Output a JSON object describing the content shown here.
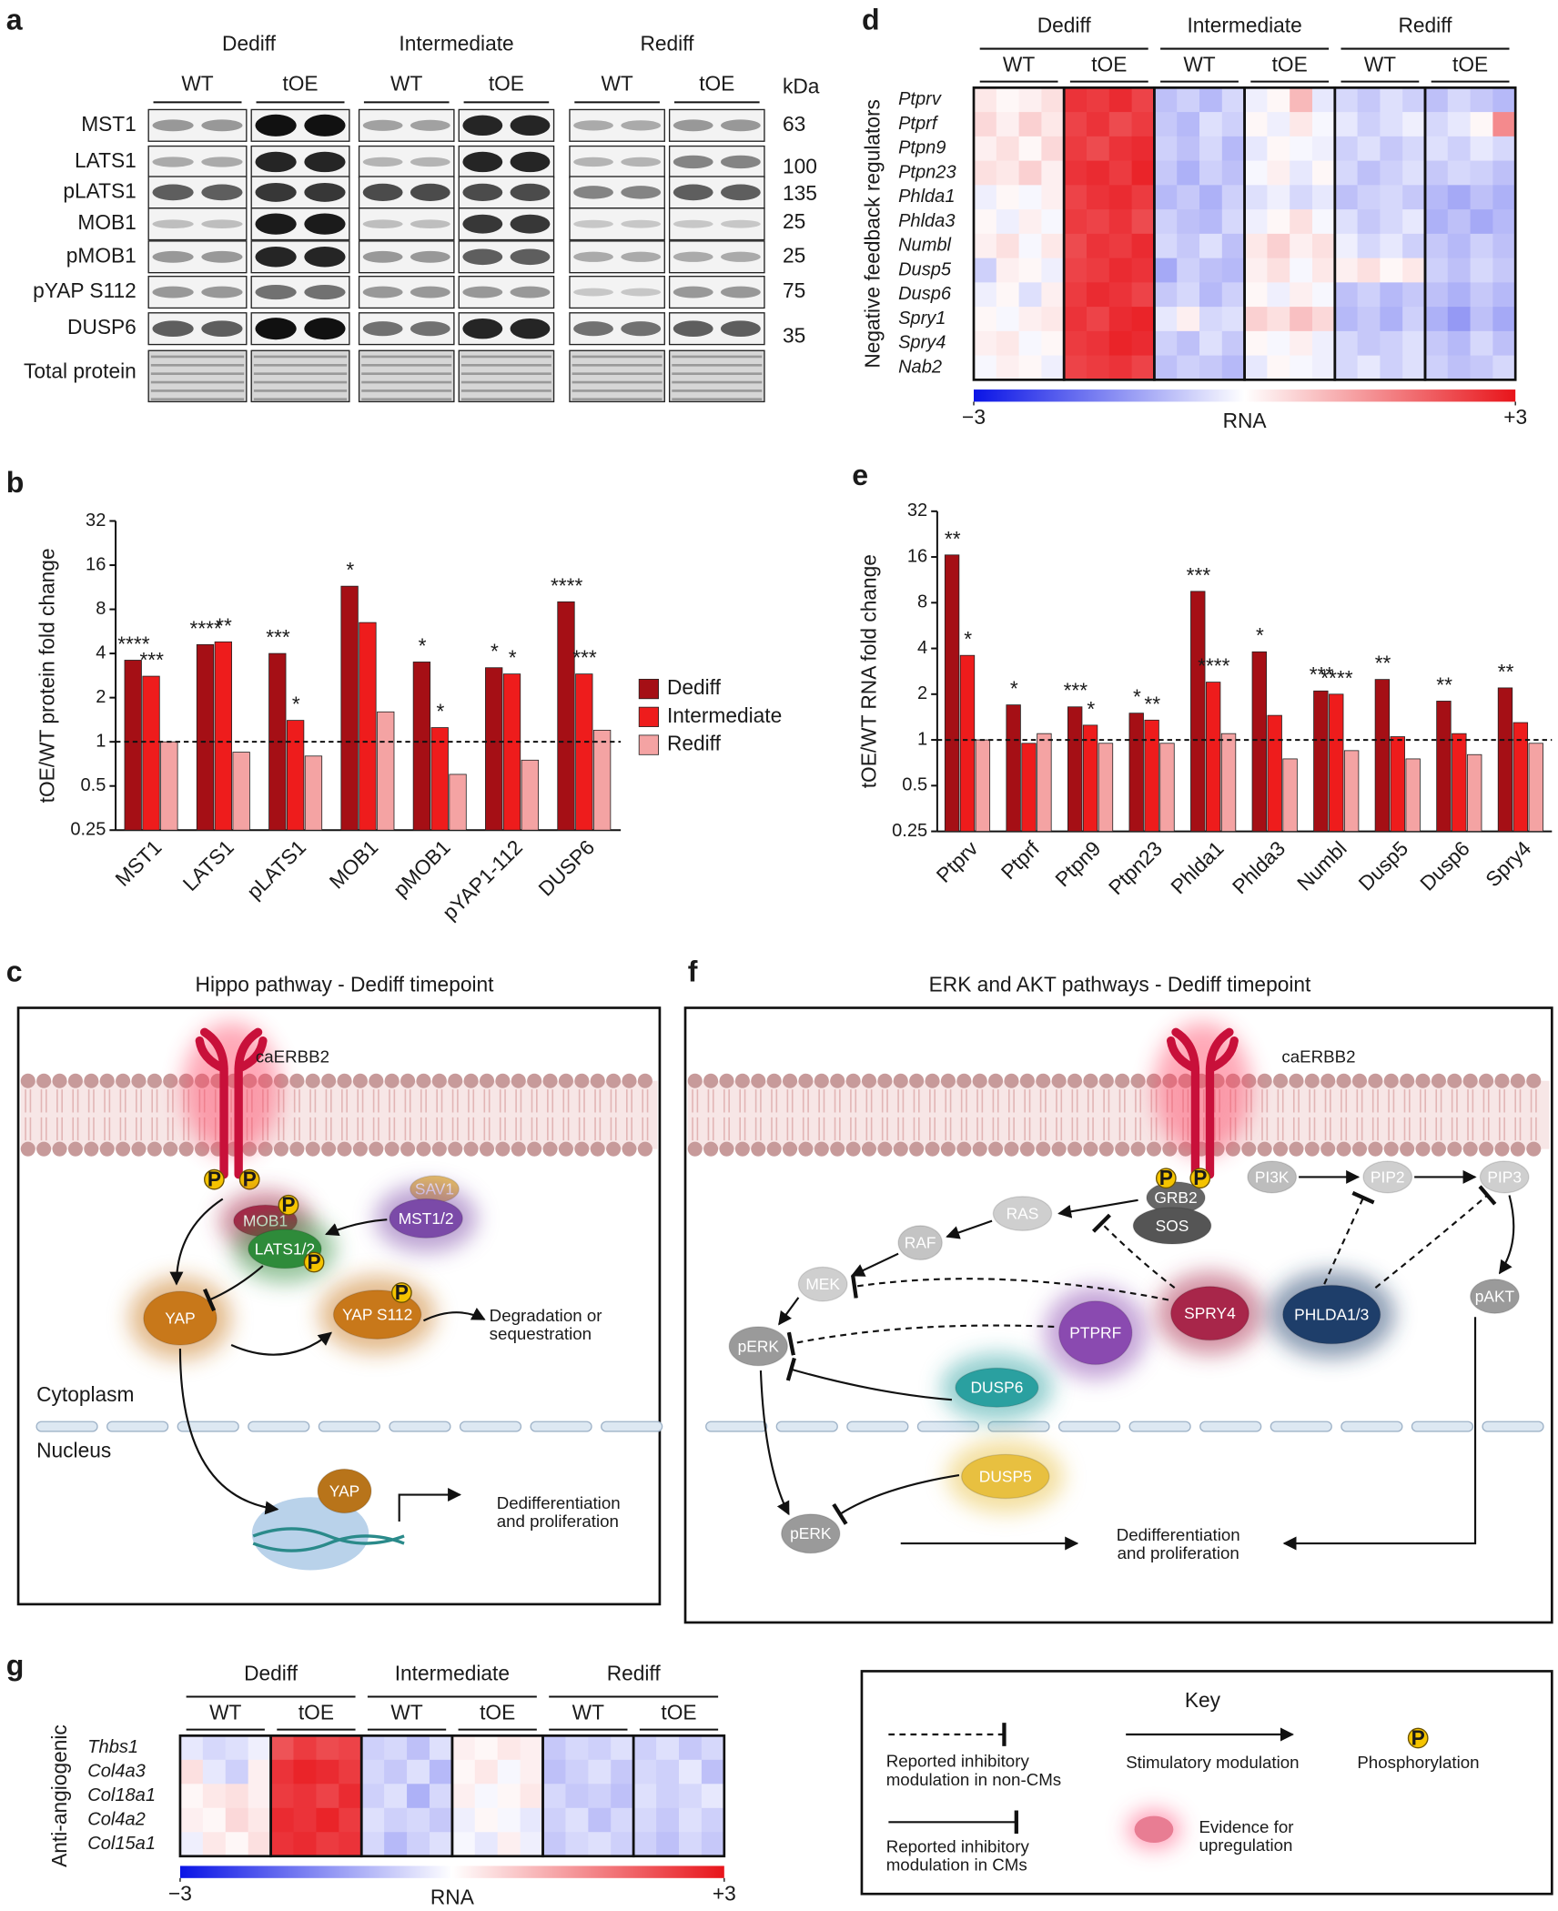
{
  "chart_data": [
    {
      "type": "bar",
      "panel": "b",
      "ylabel": "tOE/WT protein fold change",
      "log_scale": true,
      "hline": 1,
      "legend": true,
      "categories": [
        "MST1",
        "LATS1",
        "pLATS1",
        "MOB1",
        "pMOB1",
        "pYAP1-112",
        "DUSP6"
      ],
      "ylim": [
        0.25,
        32
      ],
      "yticks": [
        0.25,
        0.5,
        1,
        2,
        4,
        8,
        16,
        32
      ],
      "series": [
        {
          "name": "Dediff",
          "color": "#a50f15",
          "values": [
            3.6,
            4.6,
            4.0,
            11.5,
            3.5,
            3.2,
            9.0
          ],
          "annotations": [
            "****",
            "****",
            "***",
            "*",
            "*",
            "*",
            "****"
          ]
        },
        {
          "name": "Intermediate",
          "color": "#ee1c1c",
          "values": [
            2.8,
            4.8,
            1.4,
            6.5,
            1.25,
            2.9,
            2.9
          ],
          "annotations": [
            "***",
            "**",
            "*",
            null,
            "*",
            "*",
            "***"
          ]
        },
        {
          "name": "Rediff",
          "color": "#f4a3a3",
          "values": [
            1.0,
            0.85,
            0.8,
            1.6,
            0.6,
            0.75,
            1.2
          ]
        }
      ]
    },
    {
      "type": "heatmap",
      "panel": "d",
      "ylabel": "Negative feedback regulators",
      "groups": [
        "Dediff",
        "Intermediate",
        "Rediff"
      ],
      "subgroups": [
        "WT",
        "tOE",
        "WT",
        "tOE",
        "WT",
        "tOE"
      ],
      "rows": [
        "Ptprv",
        "Ptprf",
        "Ptpn9",
        "Ptpn23",
        "Phlda1",
        "Phlda3",
        "Numbl",
        "Dusp5",
        "Dusp6",
        "Spry1",
        "Spry4",
        "Nab2"
      ],
      "values": [
        [
          0.3,
          0.1,
          0.2,
          0.4,
          2.6,
          2.5,
          2.7,
          2.4,
          -0.8,
          -0.6,
          -0.9,
          -0.5,
          -0.2,
          0.1,
          0.9,
          -0.3,
          -0.5,
          -0.7,
          -0.4,
          -0.6,
          -0.8,
          -0.5,
          -0.7,
          -0.9
        ],
        [
          0.5,
          0.2,
          0.6,
          0.3,
          2.4,
          2.6,
          2.3,
          2.5,
          -0.7,
          -0.9,
          -0.4,
          -0.6,
          0.1,
          -0.2,
          0.3,
          -0.1,
          -0.3,
          -0.6,
          -0.4,
          -0.2,
          -0.5,
          -0.3,
          0.1,
          1.5
        ],
        [
          0.2,
          0.4,
          0.1,
          0.5,
          2.5,
          2.3,
          2.6,
          2.7,
          -0.6,
          -0.8,
          -0.5,
          -0.9,
          -0.3,
          0.1,
          -0.1,
          -0.2,
          -0.6,
          -0.4,
          -0.7,
          -0.5,
          -0.4,
          -0.6,
          -0.3,
          -0.5
        ],
        [
          0.4,
          0.3,
          0.6,
          0.2,
          2.6,
          2.7,
          2.5,
          2.8,
          -0.7,
          -1.0,
          -0.6,
          -0.8,
          -0.1,
          0.2,
          -0.3,
          0.1,
          -0.5,
          -0.8,
          -0.6,
          -0.4,
          -0.7,
          -0.5,
          -0.6,
          -0.8
        ],
        [
          -0.2,
          0.1,
          -0.1,
          0.2,
          2.4,
          2.6,
          2.7,
          2.5,
          -0.9,
          -0.7,
          -1.0,
          -0.6,
          -0.4,
          -0.2,
          -0.5,
          -0.3,
          -0.8,
          -0.6,
          -0.5,
          -0.7,
          -0.9,
          -1.1,
          -0.8,
          -1.0
        ],
        [
          0.1,
          -0.2,
          0.2,
          -0.1,
          2.5,
          2.4,
          2.6,
          2.3,
          -0.6,
          -0.8,
          -0.9,
          -0.5,
          -0.2,
          0.1,
          0.4,
          -0.1,
          -0.4,
          -0.7,
          -0.5,
          -0.3,
          -1.0,
          -0.8,
          -1.1,
          -0.9
        ],
        [
          0.2,
          0.4,
          -0.1,
          0.3,
          2.3,
          2.6,
          2.5,
          2.7,
          -0.5,
          -0.7,
          -0.4,
          -0.8,
          0.3,
          0.6,
          0.2,
          0.4,
          -0.2,
          -0.5,
          -0.3,
          -0.6,
          -0.7,
          -0.9,
          -0.6,
          -0.8
        ],
        [
          -0.6,
          0.2,
          0.1,
          -0.2,
          2.4,
          2.5,
          2.7,
          2.6,
          -1.1,
          -0.6,
          -0.8,
          -0.9,
          0.2,
          0.4,
          -0.1,
          0.3,
          0.2,
          0.4,
          0.1,
          0.3,
          -0.6,
          -0.8,
          -0.5,
          -0.7
        ],
        [
          -0.2,
          0.1,
          -0.4,
          0.2,
          2.5,
          2.7,
          2.6,
          2.4,
          -0.7,
          -0.5,
          -0.9,
          -0.6,
          0.1,
          -0.2,
          0.2,
          -0.1,
          -0.8,
          -0.6,
          -0.9,
          -0.7,
          -0.8,
          -1.0,
          -0.7,
          -0.9
        ],
        [
          0.1,
          -0.1,
          0.2,
          0.3,
          2.6,
          2.4,
          2.7,
          2.8,
          -0.3,
          0.2,
          -0.5,
          -0.4,
          0.6,
          0.4,
          0.8,
          0.5,
          -0.9,
          -0.7,
          -1.0,
          -0.6,
          -1.0,
          -1.3,
          -0.8,
          -1.1
        ],
        [
          0.2,
          0.3,
          -0.1,
          0.1,
          2.5,
          2.6,
          2.8,
          2.7,
          -0.6,
          -0.8,
          -0.4,
          -0.7,
          0.1,
          -0.1,
          0.2,
          -0.2,
          -0.5,
          -0.7,
          -0.6,
          -0.4,
          -0.7,
          -0.9,
          -0.5,
          -0.8
        ],
        [
          -0.1,
          0.2,
          0.1,
          -0.2,
          2.4,
          2.5,
          2.6,
          2.4,
          -0.8,
          -0.6,
          -0.7,
          -0.9,
          -0.3,
          0.1,
          -0.1,
          -0.2,
          -0.5,
          -0.3,
          -0.6,
          -0.4,
          -0.6,
          -0.8,
          -0.7,
          -0.5
        ]
      ],
      "zlim": [
        -3,
        3
      ],
      "zticks": [
        {
          "value": -3,
          "label": "−3"
        },
        {
          "value": 3,
          "label": "+3"
        }
      ],
      "colorbar_label": "RNA",
      "colors": [
        "#0a14e6",
        "#ffffff",
        "#e8141a"
      ]
    },
    {
      "type": "bar",
      "panel": "e",
      "ylabel": "tOE/WT RNA fold change",
      "log_scale": true,
      "hline": 1,
      "legend": false,
      "categories": [
        "Ptprv",
        "Ptprf",
        "Ptpn9",
        "Ptpn23",
        "Phlda1",
        "Phlda3",
        "Numbl",
        "Dusp5",
        "Dusp6",
        "Spry4"
      ],
      "ylim": [
        0.25,
        32
      ],
      "yticks": [
        0.25,
        0.5,
        1,
        2,
        4,
        8,
        16,
        32
      ],
      "series": [
        {
          "name": "Dediff",
          "color": "#a50f15",
          "values": [
            16.5,
            1.7,
            1.65,
            1.5,
            9.5,
            3.8,
            2.1,
            2.5,
            1.8,
            2.2
          ],
          "annotations": [
            "**",
            "*",
            "***",
            "*",
            "***",
            "*",
            "***",
            "**",
            "**",
            "**"
          ]
        },
        {
          "name": "Intermediate",
          "color": "#ee1c1c",
          "values": [
            3.6,
            0.95,
            1.25,
            1.35,
            2.4,
            1.45,
            2.0,
            1.05,
            1.1,
            1.3
          ],
          "annotations": [
            "*",
            null,
            "*",
            "**",
            "****",
            null,
            "****",
            null,
            null,
            null
          ]
        },
        {
          "name": "Rediff",
          "color": "#f4a3a3",
          "values": [
            1.0,
            1.1,
            0.95,
            0.95,
            1.1,
            0.75,
            0.85,
            0.75,
            0.8,
            0.95
          ]
        }
      ]
    },
    {
      "type": "heatmap",
      "panel": "g",
      "ylabel": "Anti-angiogenic",
      "groups": [
        "Dediff",
        "Intermediate",
        "Rediff"
      ],
      "subgroups": [
        "WT",
        "tOE",
        "WT",
        "tOE",
        "WT",
        "tOE"
      ],
      "rows": [
        "Thbs1",
        "Col4a3",
        "Col18a1",
        "Col4a2",
        "Col15a1"
      ],
      "values": [
        [
          -0.3,
          -0.5,
          -0.4,
          -0.2,
          2.2,
          2.5,
          2.3,
          2.4,
          -0.6,
          -0.5,
          -0.8,
          -0.4,
          0.2,
          0.1,
          0.3,
          0.2,
          -0.7,
          -0.5,
          -0.6,
          -0.4,
          -0.6,
          -0.4,
          -0.7,
          -0.5
        ],
        [
          0.4,
          -0.3,
          -0.6,
          0.2,
          2.6,
          2.8,
          2.7,
          2.5,
          -0.5,
          -0.7,
          -0.4,
          -0.9,
          0.1,
          0.3,
          -0.1,
          0.2,
          -0.8,
          -0.6,
          -0.4,
          -0.7,
          -0.5,
          -0.6,
          -0.3,
          -0.8
        ],
        [
          0.1,
          0.3,
          0.4,
          0.2,
          2.5,
          2.6,
          2.4,
          2.7,
          -0.6,
          -0.4,
          -1.0,
          -0.5,
          0.2,
          -0.1,
          0.1,
          0.3,
          -0.5,
          -0.7,
          -0.6,
          -0.8,
          -0.4,
          -0.6,
          -0.5,
          -0.3
        ],
        [
          0.2,
          0.1,
          0.5,
          0.3,
          2.7,
          2.6,
          2.8,
          2.5,
          -0.4,
          -0.6,
          -0.5,
          -0.7,
          -0.2,
          0.1,
          -0.1,
          -0.3,
          -0.6,
          -0.4,
          -0.8,
          -0.5,
          -0.5,
          -0.7,
          -0.4,
          -0.6
        ],
        [
          -0.2,
          0.3,
          0.1,
          0.4,
          2.6,
          2.7,
          2.5,
          2.6,
          -0.5,
          -0.9,
          -0.6,
          -0.4,
          -0.1,
          -0.3,
          0.2,
          -0.2,
          -0.7,
          -0.5,
          -0.4,
          -0.6,
          -0.6,
          -0.8,
          -0.5,
          -0.7
        ]
      ],
      "zlim": [
        -3,
        3
      ],
      "zticks": [
        {
          "value": -3,
          "label": "−3"
        },
        {
          "value": 3,
          "label": "+3"
        }
      ],
      "colorbar_label": "RNA",
      "colors": [
        "#0a14e6",
        "#ffffff",
        "#e8141a"
      ]
    }
  ],
  "panel_a": {
    "letter": "a",
    "groups": [
      "Dediff",
      "Intermediate",
      "Rediff"
    ],
    "subgroups": [
      "WT",
      "tOE",
      "WT",
      "tOE",
      "WT",
      "tOE"
    ],
    "unit": "kDa",
    "rows": [
      {
        "label": "MST1",
        "kda": 63
      },
      {
        "label": "LATS1",
        "kda": 100
      },
      {
        "label": "pLATS1",
        "kda": 135
      },
      {
        "label": "MOB1",
        "kda": 25
      },
      {
        "label": "pMOB1",
        "kda": 25
      },
      {
        "label": "pYAP S112",
        "kda": 75
      },
      {
        "label": "DUSP6",
        "kda": 35
      }
    ],
    "total": "Total protein"
  },
  "panel_c": {
    "letter": "c",
    "title": "Hippo pathway - Dediff timepoint",
    "receptor": "caERBB2",
    "phospho": "P",
    "nodes": [
      "MOB1",
      "LATS1/2",
      "SAV1",
      "MST1/2",
      "YAP",
      "YAP S112",
      "YAP"
    ],
    "outcome_1": [
      "Degradation or",
      "sequestration"
    ],
    "compartments": [
      "Cytoplasm",
      "Nucleus"
    ],
    "outcome_2": [
      "Dedifferentiation",
      "and proliferation"
    ]
  },
  "panel_f": {
    "letter": "f",
    "title": "ERK and AKT pathways - Dediff timepoint",
    "receptor": "caERBB2",
    "phospho": "P",
    "nodes": [
      "GRB2",
      "SOS",
      "PI3K",
      "PIP2",
      "PIP3",
      "RAS",
      "RAF",
      "MEK",
      "pERK",
      "PTPRF",
      "SPRY4",
      "PHLDA1/3",
      "pAKT",
      "DUSP6",
      "DUSP5",
      "pERK"
    ],
    "outcome": [
      "Dedifferentiation",
      "and proliferation"
    ]
  },
  "key": {
    "title": "Key",
    "inhib_noncm": [
      "Reported inhibitory",
      "modulation in non-CMs"
    ],
    "stim": "Stimulatory modulation",
    "phospho": "Phosphorylation",
    "phospho_symbol": "P",
    "inhib_cm": [
      "Reported inhibitory",
      "modulation in CMs"
    ],
    "upreg": [
      "Evidence for",
      "upregulation"
    ]
  }
}
